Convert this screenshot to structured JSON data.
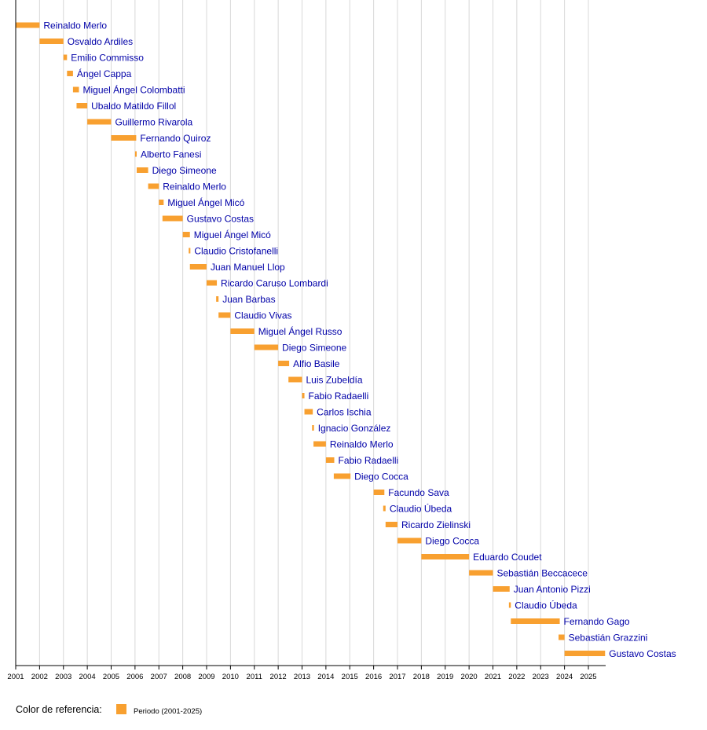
{
  "chart_data": {
    "type": "bar",
    "subtype": "timeline",
    "xlim": [
      2001,
      2025.7
    ],
    "x_ticks": [
      "2001",
      "2002",
      "2003",
      "2004",
      "2005",
      "2006",
      "2007",
      "2008",
      "2009",
      "2010",
      "2011",
      "2012",
      "2013",
      "2014",
      "2015",
      "2016",
      "2017",
      "2018",
      "2019",
      "2020",
      "2021",
      "2022",
      "2023",
      "2024",
      "2025"
    ],
    "grid": true,
    "bar_color": "#f8a030",
    "label_color": "#0000a8",
    "legend": {
      "title": "Color de referencia:",
      "items": [
        {
          "label": "Periodo (2001-2025)",
          "color": "#f8a030"
        }
      ],
      "placement": "bottom-left"
    },
    "series": [
      {
        "name": "Reinaldo Merlo",
        "start": 2001.0,
        "end": 2002.0
      },
      {
        "name": "Osvaldo Ardiles",
        "start": 2002.0,
        "end": 2003.0
      },
      {
        "name": "Emilio Commisso",
        "start": 2003.0,
        "end": 2003.15
      },
      {
        "name": "Ángel Cappa",
        "start": 2003.15,
        "end": 2003.4
      },
      {
        "name": "Miguel Ángel Colombatti",
        "start": 2003.4,
        "end": 2003.65
      },
      {
        "name": "Ubaldo Matildo Fillol",
        "start": 2003.55,
        "end": 2004.0
      },
      {
        "name": "Guillermo Rivarola",
        "start": 2004.0,
        "end": 2005.0
      },
      {
        "name": "Fernando Quiroz",
        "start": 2005.0,
        "end": 2006.05
      },
      {
        "name": "Alberto Fanesi",
        "start": 2006.0,
        "end": 2006.07
      },
      {
        "name": "Diego Simeone",
        "start": 2006.07,
        "end": 2006.55
      },
      {
        "name": "Reinaldo Merlo",
        "start": 2006.55,
        "end": 2007.0
      },
      {
        "name": "Miguel Ángel Micó",
        "start": 2007.0,
        "end": 2007.2
      },
      {
        "name": "Gustavo Costas",
        "start": 2007.15,
        "end": 2008.0
      },
      {
        "name": "Miguel Ángel Micó",
        "start": 2008.0,
        "end": 2008.3
      },
      {
        "name": "Claudio Cristofanelli",
        "start": 2008.25,
        "end": 2008.32
      },
      {
        "name": "Juan Manuel Llop",
        "start": 2008.3,
        "end": 2009.0
      },
      {
        "name": "Ricardo Caruso Lombardi",
        "start": 2009.0,
        "end": 2009.43
      },
      {
        "name": "Juan Barbas",
        "start": 2009.4,
        "end": 2009.5
      },
      {
        "name": "Claudio Vivas",
        "start": 2009.5,
        "end": 2010.0
      },
      {
        "name": "Miguel Ángel Russo",
        "start": 2010.0,
        "end": 2011.0
      },
      {
        "name": "Diego Simeone",
        "start": 2011.0,
        "end": 2012.0
      },
      {
        "name": "Alfio Basile",
        "start": 2012.0,
        "end": 2012.46
      },
      {
        "name": "Luis Zubeldía",
        "start": 2012.43,
        "end": 2013.0
      },
      {
        "name": "Fabio Radaelli",
        "start": 2013.0,
        "end": 2013.1
      },
      {
        "name": "Carlos Ischia",
        "start": 2013.1,
        "end": 2013.45
      },
      {
        "name": "Ignacio González",
        "start": 2013.42,
        "end": 2013.5
      },
      {
        "name": "Reinaldo Merlo",
        "start": 2013.48,
        "end": 2014.0
      },
      {
        "name": "Fabio Radaelli",
        "start": 2014.0,
        "end": 2014.35
      },
      {
        "name": "Diego Cocca",
        "start": 2014.33,
        "end": 2015.03
      },
      {
        "name": "Facundo Sava",
        "start": 2016.0,
        "end": 2016.45
      },
      {
        "name": "Claudio Úbeda",
        "start": 2016.4,
        "end": 2016.5
      },
      {
        "name": "Ricardo Zielinski",
        "start": 2016.5,
        "end": 2017.0
      },
      {
        "name": "Diego Cocca",
        "start": 2017.0,
        "end": 2018.0
      },
      {
        "name": "Eduardo Coudet",
        "start": 2018.0,
        "end": 2020.0
      },
      {
        "name": "Sebastián Beccacece",
        "start": 2020.0,
        "end": 2021.0
      },
      {
        "name": "Juan Antonio Pizzi",
        "start": 2021.0,
        "end": 2021.7
      },
      {
        "name": "Claudio Úbeda",
        "start": 2021.67,
        "end": 2021.75
      },
      {
        "name": "Fernando Gago",
        "start": 2021.75,
        "end": 2023.8
      },
      {
        "name": "Sebastián Grazzini",
        "start": 2023.75,
        "end": 2024.0
      },
      {
        "name": "Gustavo Costas",
        "start": 2024.0,
        "end": 2025.7
      }
    ]
  }
}
